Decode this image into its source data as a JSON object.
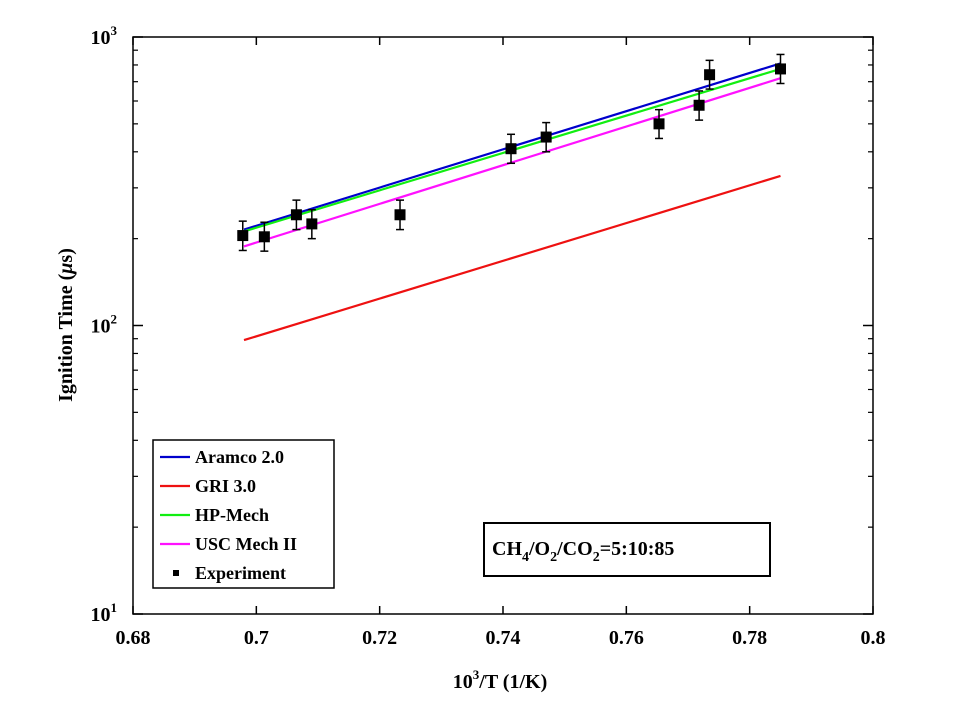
{
  "chart_data": {
    "type": "line",
    "title": "",
    "xlabel": {
      "base": "10",
      "sup": "3",
      "rest": "/T (1/K)"
    },
    "ylabel": {
      "pre": "Ignition Time (",
      "mu": "μ",
      "post": "s)"
    },
    "xlim": [
      0.68,
      0.8
    ],
    "ylim": [
      10,
      1000
    ],
    "yscale": "log",
    "x_ticks": [
      0.68,
      0.7,
      0.72,
      0.74,
      0.76,
      0.78,
      0.8
    ],
    "x_tick_labels": [
      "0.68",
      "0.7",
      "0.72",
      "0.74",
      "0.76",
      "0.78",
      "0.8"
    ],
    "y_ticks": [
      10,
      100,
      1000
    ],
    "y_tick_labels": [
      {
        "base": "10",
        "exp": "1"
      },
      {
        "base": "10",
        "exp": "2"
      },
      {
        "base": "10",
        "exp": "3"
      }
    ],
    "grid": false,
    "legend_position": "bottom-left",
    "series": [
      {
        "name": "Aramco 2.0",
        "color": "#0000cc",
        "x": [
          0.698,
          0.785
        ],
        "y": [
          215,
          810
        ]
      },
      {
        "name": "GRI 3.0",
        "color": "#ee1111",
        "x": [
          0.698,
          0.785
        ],
        "y": [
          89,
          330
        ]
      },
      {
        "name": "HP-Mech",
        "color": "#11ee11",
        "x": [
          0.698,
          0.785
        ],
        "y": [
          212,
          775
        ]
      },
      {
        "name": "USC Mech II",
        "color": "#ff11ff",
        "x": [
          0.698,
          0.785
        ],
        "y": [
          188,
          720
        ]
      }
    ],
    "experiment": {
      "name": "Experiment",
      "color": "#000000",
      "points": [
        {
          "x": 0.6978,
          "y": 205,
          "err_low": 182,
          "err_high": 230
        },
        {
          "x": 0.7013,
          "y": 203,
          "err_low": 181,
          "err_high": 228
        },
        {
          "x": 0.7065,
          "y": 242,
          "err_low": 215,
          "err_high": 272
        },
        {
          "x": 0.709,
          "y": 225,
          "err_low": 200,
          "err_high": 252
        },
        {
          "x": 0.7233,
          "y": 242,
          "err_low": 215,
          "err_high": 272
        },
        {
          "x": 0.7413,
          "y": 410,
          "err_low": 365,
          "err_high": 460
        },
        {
          "x": 0.747,
          "y": 450,
          "err_low": 400,
          "err_high": 505
        },
        {
          "x": 0.7653,
          "y": 500,
          "err_low": 445,
          "err_high": 560
        },
        {
          "x": 0.7718,
          "y": 580,
          "err_low": 515,
          "err_high": 650
        },
        {
          "x": 0.7735,
          "y": 740,
          "err_low": 660,
          "err_high": 830
        },
        {
          "x": 0.785,
          "y": 775,
          "err_low": 690,
          "err_high": 870
        }
      ]
    },
    "annotation": {
      "parts": [
        "CH",
        "4",
        "/O",
        "2",
        "/CO",
        "2",
        "=5:10:85"
      ]
    }
  }
}
